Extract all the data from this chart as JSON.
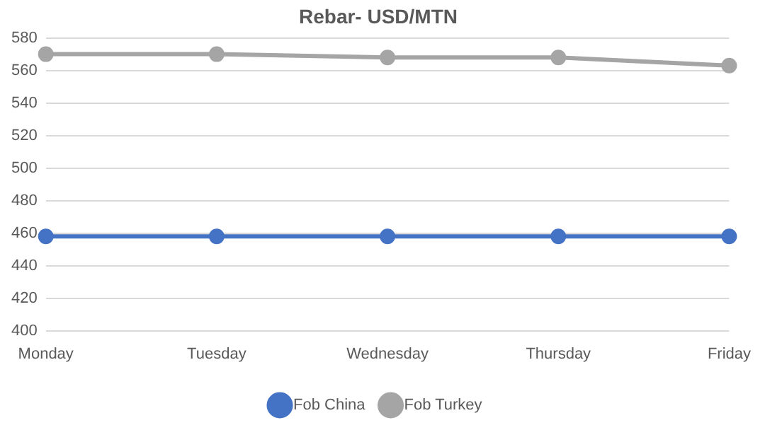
{
  "chart_data": {
    "type": "line",
    "title": "Rebar- USD/MTN",
    "categories": [
      "Monday",
      "Tuesday",
      "Wednesday",
      "Thursday",
      "Friday"
    ],
    "series": [
      {
        "name": "Fob China",
        "color": "#4472c4",
        "values": [
          458,
          458,
          458,
          458,
          458
        ]
      },
      {
        "name": "Fob Turkey",
        "color": "#a5a5a5",
        "values": [
          570,
          570,
          568,
          568,
          563
        ]
      }
    ],
    "ylim": [
      400,
      580
    ],
    "yticks": [
      400,
      420,
      440,
      460,
      480,
      500,
      520,
      540,
      560,
      580
    ],
    "grid": "y",
    "legend": "bottom",
    "marker": "circle",
    "line_style": "solid"
  }
}
